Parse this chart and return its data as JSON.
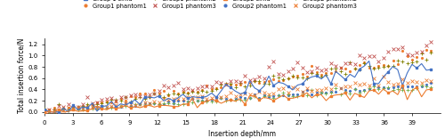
{
  "xlabel": "Insertion depth/mm",
  "ylabel": "Total insertion force/N",
  "xlim": [
    0,
    42
  ],
  "ylim": [
    -0.02,
    1.3
  ],
  "yticks": [
    0,
    0.2,
    0.4,
    0.6,
    0.8,
    1.0,
    1.2
  ],
  "xticks": [
    0,
    3,
    6,
    9,
    12,
    15,
    18,
    21,
    24,
    27,
    30,
    33,
    36,
    39
  ],
  "g1_simu_color": "#4472C4",
  "g2_simu_color": "#ED7D31",
  "g1_p1_color": "#ED7D31",
  "g1_p2_color": "#808000",
  "g1_p3_color": "#C0504D",
  "g2_p1_color": "#4472C4",
  "g2_p2_color": "#70AD47",
  "g2_p3_color": "#ED7D31",
  "n_points": 82,
  "legend_fontsize": 4.8,
  "tick_fontsize": 5.0,
  "axis_label_fontsize": 5.5
}
